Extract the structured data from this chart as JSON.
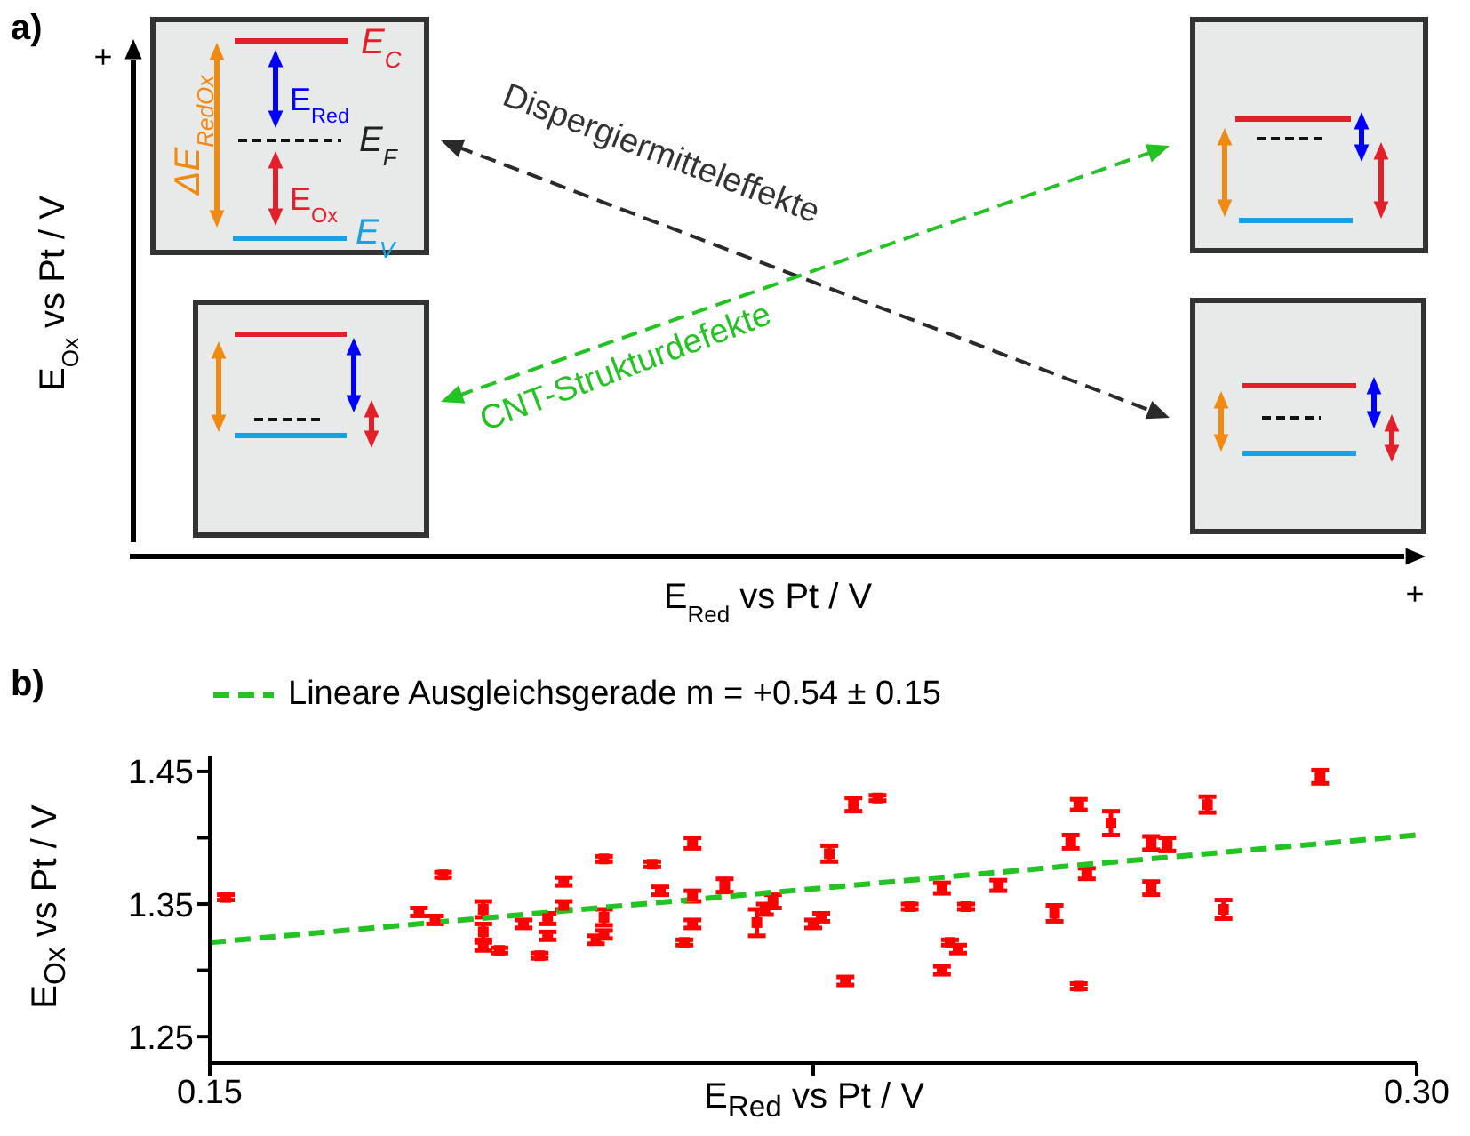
{
  "chart_data": [
    {
      "type": "other",
      "title": "a)",
      "xlabel": "E$_{Red}$ vs Pt / V",
      "ylabel": "E$_{Ox}$  vs Pt / V",
      "annotations": [
        "+",
        "+",
        "Dispergiermitteleffekte",
        "CNT-Strukturdefekte",
        "ΔE$_{RedOx}$",
        "E$_{C}$",
        "E$_{Red}$",
        "E$_{F}$",
        "E$_{Ox}$",
        "E$_{V}$"
      ]
    },
    {
      "type": "scatter",
      "title": "b)",
      "xlabel": "E$_{Red}$ vs Pt / V",
      "ylabel": "E$_{Ox}$  vs Pt / V",
      "xlim": [
        0.15,
        0.3
      ],
      "ylim": [
        1.23,
        1.462
      ],
      "xticks": [
        0.15,
        {
          "value": 0.225,
          "label": null
        },
        {
          "value": 0.3,
          "label": "0.30"
        }
      ],
      "yticks": [
        1.25,
        {
          "value": 1.3,
          "label": null
        },
        1.35,
        {
          "value": 1.4,
          "label": null
        },
        1.45
      ],
      "legend": "top",
      "series": [
        {
          "type": "scatter",
          "marker": "square",
          "color": "#ff0000",
          "x": [
            0.152,
            0.176,
            0.179,
            0.178,
            0.184,
            0.184,
            0.184,
            0.186,
            0.189,
            0.191,
            0.192,
            0.192,
            0.194,
            0.194,
            0.199,
            0.199,
            0.199,
            0.198,
            0.205,
            0.206,
            0.21,
            0.21,
            0.21,
            0.209,
            0.214,
            0.218,
            0.22,
            0.219,
            0.225,
            0.226,
            0.227,
            0.23,
            0.233,
            0.237,
            0.241,
            0.244,
            0.248,
            0.229,
            0.242,
            0.243,
            0.241,
            0.255,
            0.257,
            0.258,
            0.259,
            0.258,
            0.262,
            0.267,
            0.267,
            0.269,
            0.274,
            0.276,
            0.288
          ],
          "values": [
            1.355,
            1.344,
            1.372,
            1.338,
            1.346,
            1.329,
            1.318,
            1.315,
            1.335,
            1.311,
            1.339,
            1.326,
            1.367,
            1.349,
            1.384,
            1.34,
            1.327,
            1.323,
            1.38,
            1.36,
            1.396,
            1.356,
            1.335,
            1.321,
            1.364,
            1.336,
            1.352,
            1.346,
            1.335,
            1.34,
            1.388,
            1.425,
            1.43,
            1.348,
            1.362,
            1.348,
            1.364,
            1.292,
            1.321,
            1.316,
            1.3,
            1.343,
            1.397,
            1.425,
            1.373,
            1.288,
            1.411,
            1.362,
            1.396,
            1.395,
            1.425,
            1.346,
            1.446
          ],
          "errors": [
            0.002,
            0.003,
            0.002,
            0.003,
            0.006,
            0.006,
            0.003,
            0.002,
            0.003,
            0.002,
            0.004,
            0.003,
            0.003,
            0.003,
            0.002,
            0.006,
            0.003,
            0.003,
            0.002,
            0.003,
            0.004,
            0.004,
            0.003,
            0.002,
            0.005,
            0.01,
            0.005,
            0.004,
            0.003,
            0.003,
            0.006,
            0.005,
            0.002,
            0.002,
            0.004,
            0.002,
            0.004,
            0.003,
            0.002,
            0.003,
            0.003,
            0.006,
            0.005,
            0.004,
            0.004,
            0.002,
            0.009,
            0.005,
            0.005,
            0.005,
            0.006,
            0.007,
            0.005
          ]
        },
        {
          "type": "line",
          "name": "Lineare Ausgleichsgerade m = +0.54 ± 0.15",
          "color": "#22c322",
          "line_style": "dashed",
          "x": [
            0.15,
            0.3
          ],
          "values": [
            1.321,
            1.402
          ]
        }
      ]
    }
  ]
}
